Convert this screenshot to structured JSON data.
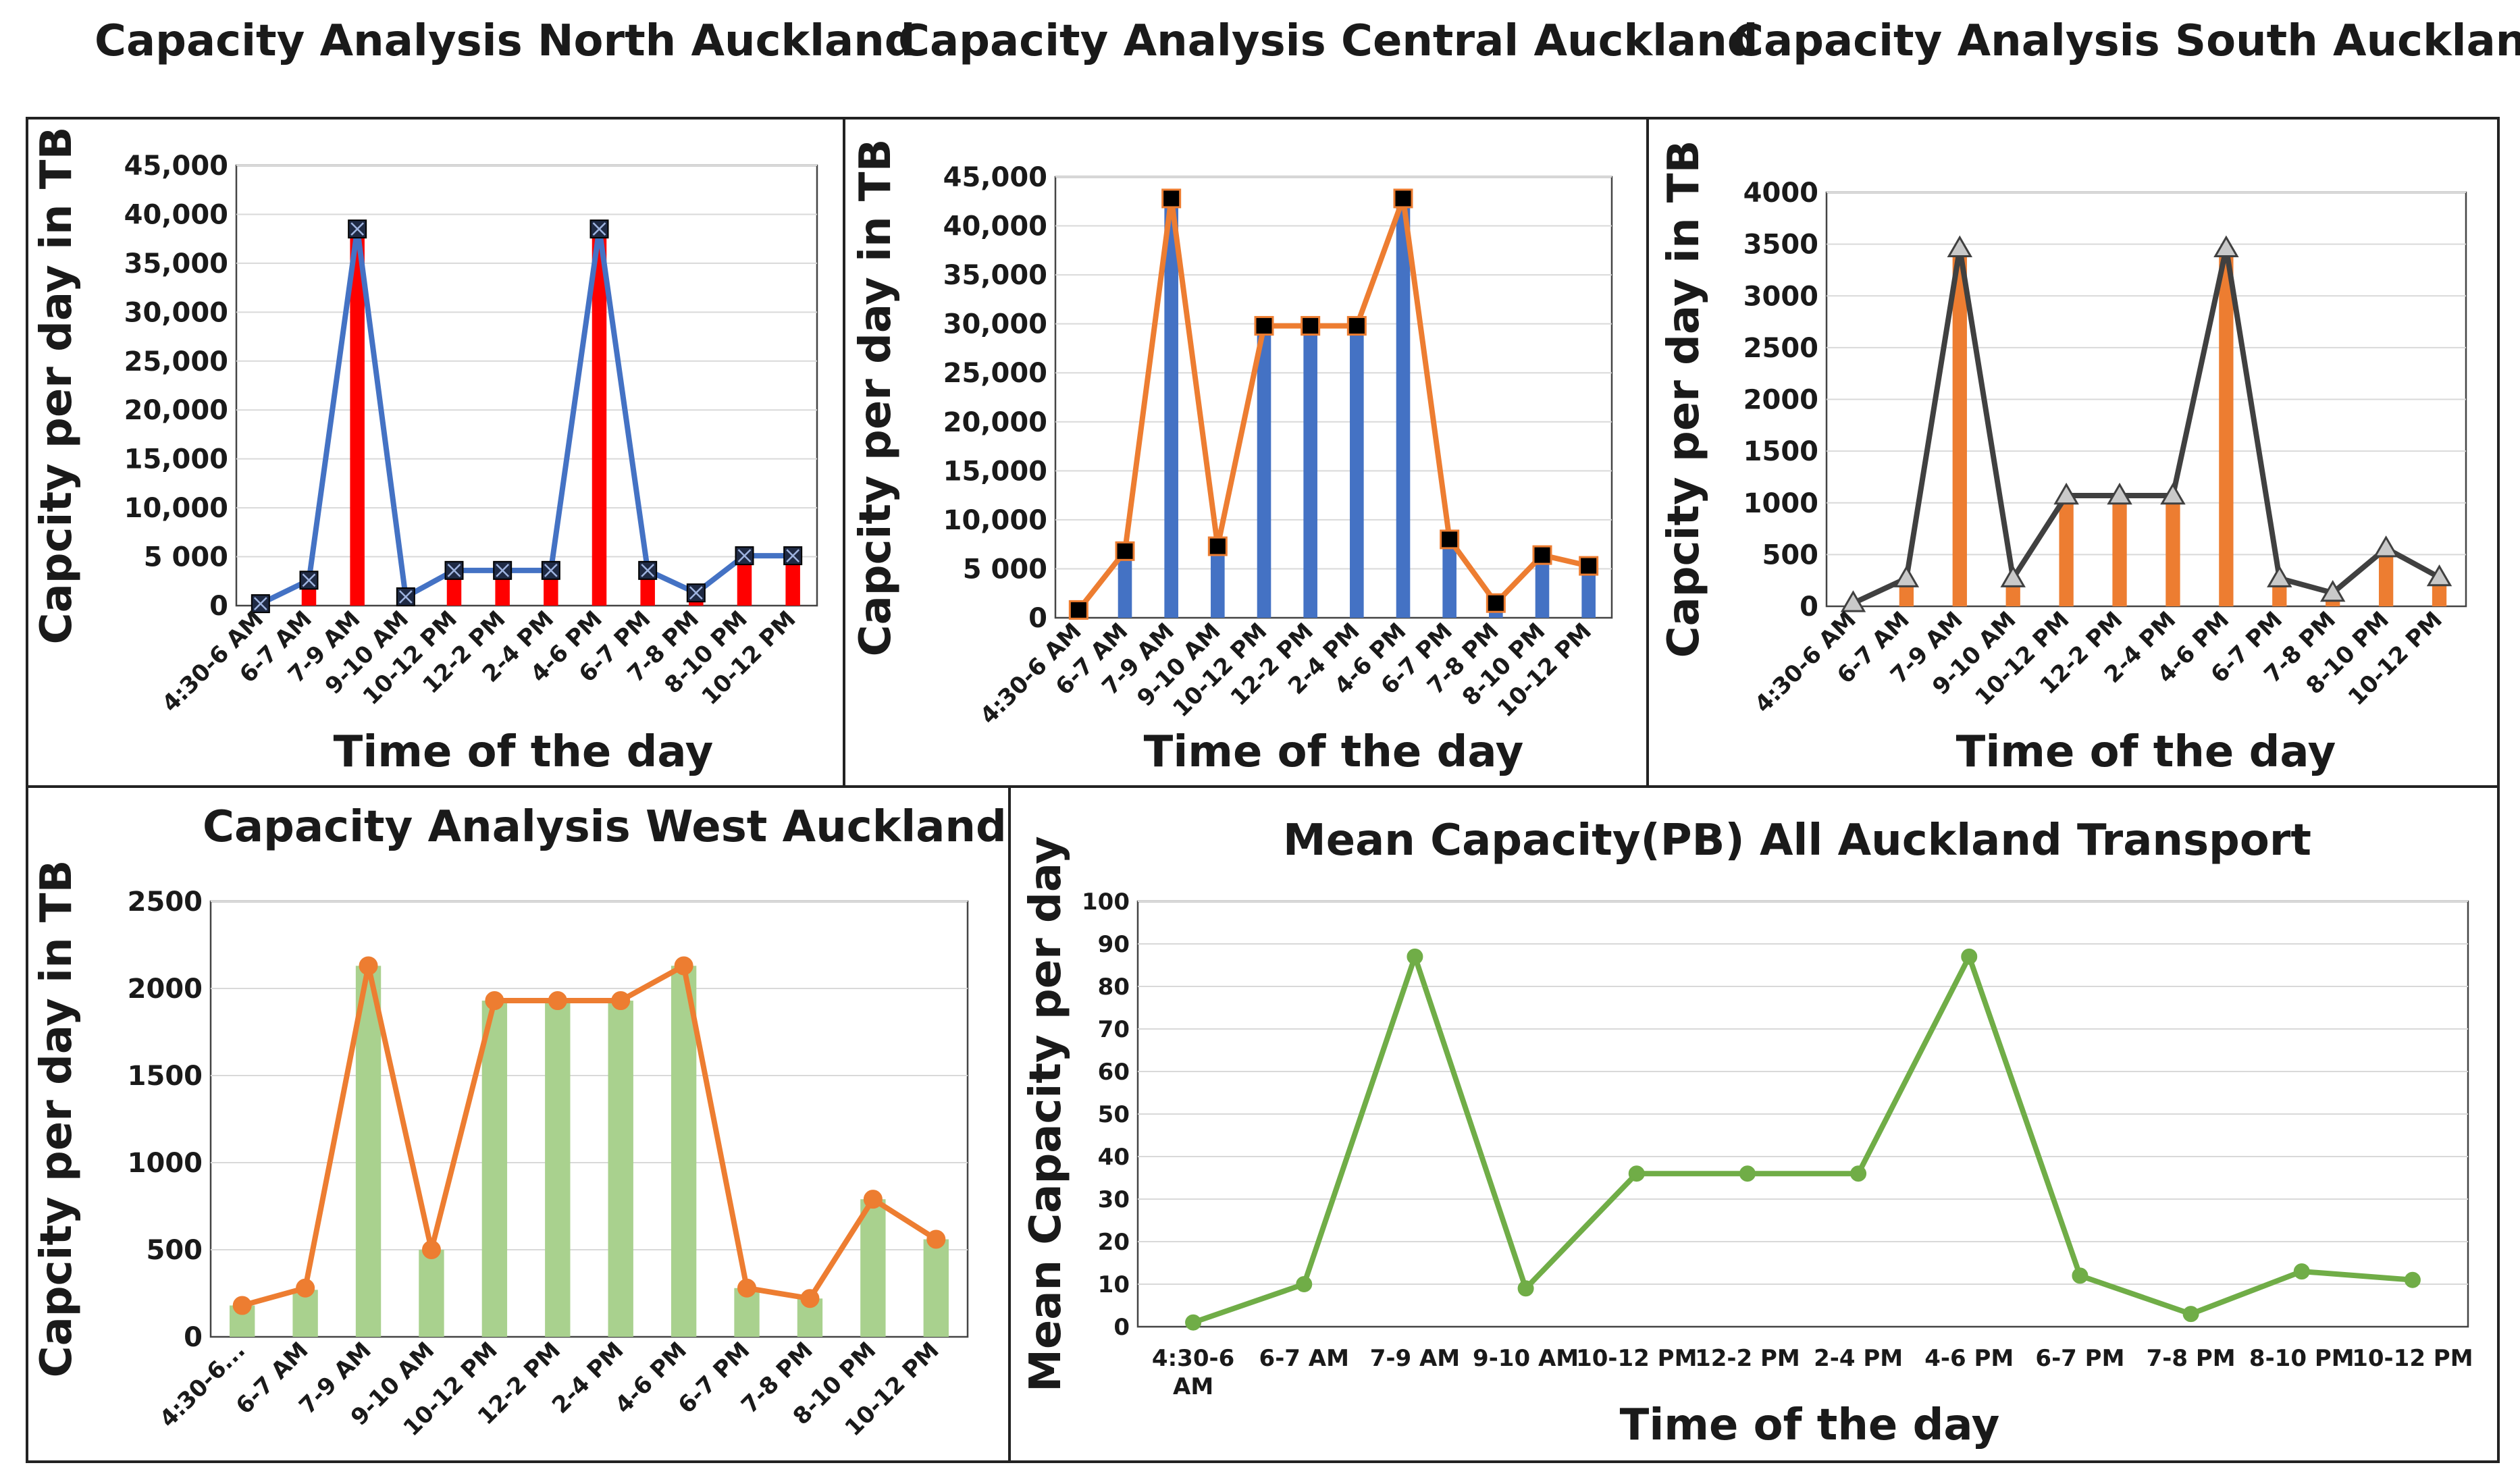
{
  "figure": {
    "titles": {
      "north": "Capacity Analysis North Auckland",
      "central": "Capacity Analysis Central Auckland",
      "south": "Capacity Analysis South Auckland",
      "west": "Capacity Analysis West Auckland",
      "mean": "Mean Capacity(PB) All Auckland Transport"
    }
  },
  "chart_data": [
    {
      "id": "north",
      "type": "bar+line",
      "title": "Capacity Analysis North Auckland",
      "xlabel": "Time of the day",
      "ylabel": "Capcity per day in TB",
      "categories": [
        "4:30-6 AM",
        "6-7 AM",
        "7-9 AM",
        "9-10 AM",
        "10-12 PM",
        "12-2 PM",
        "2-4 PM",
        "4-6 PM",
        "6-7 PM",
        "7-8 PM",
        "8-10 PM",
        "10-12 PM"
      ],
      "series": [
        {
          "name": "bars",
          "kind": "bar",
          "color": "#ff0000",
          "values": [
            200,
            2600,
            38500,
            900,
            3600,
            3600,
            3600,
            38500,
            3600,
            1300,
            5100,
            5100
          ]
        },
        {
          "name": "line",
          "kind": "line",
          "color": "#4472c4",
          "marker": "square-x",
          "values": [
            200,
            2600,
            38500,
            900,
            3600,
            3600,
            3600,
            38500,
            3600,
            1300,
            5100,
            5100
          ]
        }
      ],
      "ylim": [
        0,
        45000
      ],
      "yticks": [
        0,
        5000,
        10000,
        15000,
        20000,
        25000,
        30000,
        35000,
        40000,
        45000
      ],
      "ytick_labels": [
        "0",
        "5 000",
        "10,000",
        "15,000",
        "20,000",
        "25,000",
        "30,000",
        "35,000",
        "40,000",
        "45,000"
      ]
    },
    {
      "id": "central",
      "type": "bar+line",
      "title": "Capacity Analysis Central Auckland",
      "xlabel": "Time of the day",
      "ylabel": "Capcity per day in TB",
      "categories": [
        "4:30-6 AM",
        "6-7 AM",
        "7-9 AM",
        "9-10 AM",
        "10-12 PM",
        "12-2 PM",
        "2-4 PM",
        "4-6 PM",
        "6-7 PM",
        "7-8 PM",
        "8-10 PM",
        "10-12 PM"
      ],
      "series": [
        {
          "name": "bars",
          "kind": "bar",
          "color": "#4472c4",
          "values": [
            800,
            6800,
            42800,
            7300,
            29800,
            29800,
            29800,
            42800,
            8000,
            1500,
            6400,
            5300
          ]
        },
        {
          "name": "line",
          "kind": "line",
          "color": "#ed7d31",
          "marker": "square",
          "values": [
            800,
            6800,
            42800,
            7300,
            29800,
            29800,
            29800,
            42800,
            8000,
            1500,
            6400,
            5300
          ]
        }
      ],
      "ylim": [
        0,
        45000
      ],
      "yticks": [
        0,
        5000,
        10000,
        15000,
        20000,
        25000,
        30000,
        35000,
        40000,
        45000
      ],
      "ytick_labels": [
        "0",
        "5 000",
        "10,000",
        "15,000",
        "20,000",
        "25,000",
        "30,000",
        "35,000",
        "40,000",
        "45,000"
      ]
    },
    {
      "id": "south",
      "type": "bar+line",
      "title": "Capacity Analysis South Auckland",
      "xlabel": "Time of the day",
      "ylabel": "Capcity per day in TB",
      "categories": [
        "4:30-6 AM",
        "6-7 AM",
        "7-9 AM",
        "9-10 AM",
        "10-12 PM",
        "12-2 PM",
        "2-4 PM",
        "4-6 PM",
        "6-7 PM",
        "7-8 PM",
        "8-10 PM",
        "10-12 PM"
      ],
      "series": [
        {
          "name": "bars",
          "kind": "bar",
          "color": "#ed7d31",
          "values": [
            30,
            270,
            3460,
            270,
            1070,
            1070,
            1070,
            3460,
            270,
            130,
            560,
            280
          ]
        },
        {
          "name": "line",
          "kind": "line",
          "color": "#404040",
          "marker": "triangle",
          "values": [
            30,
            270,
            3460,
            270,
            1070,
            1070,
            1070,
            3460,
            270,
            130,
            560,
            280
          ]
        }
      ],
      "ylim": [
        0,
        4000
      ],
      "yticks": [
        0,
        500,
        1000,
        1500,
        2000,
        2500,
        3000,
        3500,
        4000
      ],
      "ytick_labels": [
        "0",
        "500",
        "1000",
        "1500",
        "2000",
        "2500",
        "3000",
        "3500",
        "4000"
      ]
    },
    {
      "id": "west",
      "type": "bar+line",
      "title": "Capacity Analysis West Auckland",
      "xlabel": "",
      "ylabel": "Capcity per day in TB",
      "categories": [
        "4:30-6...",
        "6-7 AM",
        "7-9 AM",
        "9-10 AM",
        "10-12 PM",
        "12-2 PM",
        "2-4 PM",
        "4-6 PM",
        "6-7 PM",
        "7-8 PM",
        "8-10 PM",
        "10-12 PM"
      ],
      "series": [
        {
          "name": "bars",
          "kind": "bar",
          "color": "#a9d18e",
          "values": [
            180,
            270,
            2130,
            500,
            1930,
            1930,
            1930,
            2130,
            280,
            220,
            790,
            560
          ]
        },
        {
          "name": "line",
          "kind": "line",
          "color": "#ed7d31",
          "marker": "circle",
          "values": [
            180,
            280,
            2130,
            500,
            1930,
            1930,
            1930,
            2130,
            280,
            220,
            790,
            560
          ]
        }
      ],
      "ylim": [
        0,
        2500
      ],
      "yticks": [
        0,
        500,
        1000,
        1500,
        2000,
        2500
      ],
      "ytick_labels": [
        "0",
        "500",
        "1000",
        "1500",
        "2000",
        "2500"
      ]
    },
    {
      "id": "mean",
      "type": "line",
      "title": "Mean Capacity(PB) All Auckland Transport",
      "xlabel": "Time of the day",
      "ylabel": "Mean Capacity per day",
      "categories": [
        "4:30-6 AM",
        "6-7 AM",
        "7-9 AM",
        "9-10 AM",
        "10-12 PM",
        "12-2 PM",
        "2-4 PM",
        "4-6 PM",
        "6-7 PM",
        "7-8 PM",
        "8-10 PM",
        "10-12 PM"
      ],
      "series": [
        {
          "name": "mean",
          "kind": "line",
          "color": "#70ad47",
          "marker": "circle",
          "values": [
            1,
            10,
            87,
            9,
            36,
            36,
            36,
            87,
            12,
            3,
            13,
            11
          ]
        }
      ],
      "ylim": [
        0,
        100
      ],
      "yticks": [
        0,
        10,
        20,
        30,
        40,
        50,
        60,
        70,
        80,
        90,
        100
      ],
      "ytick_labels": [
        "0",
        "10",
        "20",
        "30",
        "40",
        "50",
        "60",
        "70",
        "80",
        "90",
        "100"
      ]
    }
  ]
}
